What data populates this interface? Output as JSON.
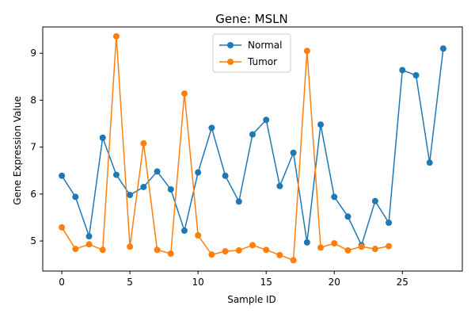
{
  "chart_data": {
    "type": "line",
    "title": "Gene: MSLN",
    "xlabel": "Sample ID",
    "ylabel": "Gene Expression Value",
    "xlim": [
      -1.4,
      29.4
    ],
    "ylim": [
      4.36,
      9.56
    ],
    "xticks": [
      0,
      5,
      10,
      15,
      20,
      25
    ],
    "yticks": [
      5,
      6,
      7,
      8,
      9
    ],
    "legend_position": "top-center",
    "grid": false,
    "series": [
      {
        "name": "Normal",
        "color": "#1f77b4",
        "x": [
          0,
          1,
          2,
          3,
          4,
          5,
          6,
          7,
          8,
          9,
          10,
          11,
          12,
          13,
          14,
          15,
          16,
          17,
          18,
          19,
          20,
          21,
          22,
          23,
          24,
          25,
          26,
          27,
          28
        ],
        "y": [
          6.39,
          5.94,
          5.1,
          7.2,
          6.41,
          5.98,
          6.15,
          6.48,
          6.1,
          5.22,
          6.46,
          7.41,
          6.39,
          5.84,
          7.27,
          7.58,
          6.17,
          6.88,
          4.97,
          7.48,
          5.94,
          5.52,
          4.91,
          5.85,
          5.39,
          8.64,
          8.53,
          6.67,
          9.1
        ]
      },
      {
        "name": "Tumor",
        "color": "#ff7f0e",
        "x": [
          0,
          1,
          2,
          3,
          4,
          5,
          6,
          7,
          8,
          9,
          10,
          11,
          12,
          13,
          14,
          15,
          16,
          17,
          18,
          19,
          20,
          21,
          22,
          23,
          24
        ],
        "y": [
          5.29,
          4.83,
          4.93,
          4.81,
          9.36,
          4.88,
          7.08,
          4.81,
          4.73,
          8.14,
          5.12,
          4.71,
          4.78,
          4.8,
          4.91,
          4.81,
          4.7,
          4.59,
          9.05,
          4.86,
          4.95,
          4.8,
          4.88,
          4.83,
          4.89
        ]
      }
    ]
  }
}
